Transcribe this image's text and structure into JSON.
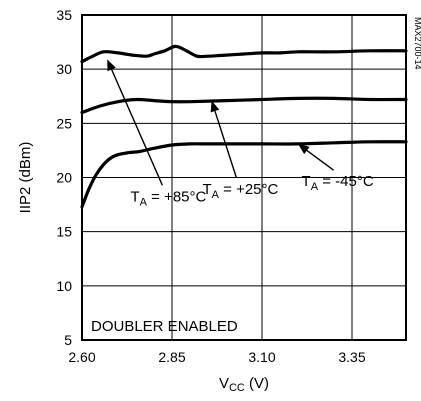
{
  "chart_data": {
    "type": "line",
    "title": "",
    "xlabel": {
      "main": "V",
      "sub": "CC",
      "unit": " (V)"
    },
    "ylabel": "IIP2 (dBm)",
    "xlim": [
      2.6,
      3.5
    ],
    "ylim": [
      5,
      35
    ],
    "x_ticks": [
      "2.60",
      "2.85",
      "3.10",
      "3.35"
    ],
    "x_tick_values": [
      2.6,
      2.85,
      3.1,
      3.35
    ],
    "y_ticks": [
      "5",
      "10",
      "15",
      "20",
      "25",
      "30",
      "35"
    ],
    "y_tick_values": [
      5,
      10,
      15,
      20,
      25,
      30,
      35
    ],
    "grid": true,
    "series": [
      {
        "name": "TA = +85°C",
        "x": [
          2.6,
          2.63,
          2.66,
          2.7,
          2.74,
          2.78,
          2.8,
          2.83,
          2.86,
          2.89,
          2.92,
          2.95,
          3.0,
          3.05,
          3.1,
          3.15,
          3.2,
          3.3,
          3.4,
          3.5
        ],
        "y": [
          30.7,
          31.2,
          31.6,
          31.5,
          31.3,
          31.2,
          31.4,
          31.7,
          32.1,
          31.7,
          31.2,
          31.2,
          31.3,
          31.4,
          31.5,
          31.5,
          31.6,
          31.6,
          31.7,
          31.7
        ]
      },
      {
        "name": "TA = +25°C",
        "x": [
          2.6,
          2.65,
          2.7,
          2.75,
          2.8,
          2.85,
          2.9,
          3.0,
          3.1,
          3.2,
          3.3,
          3.4,
          3.5
        ],
        "y": [
          26.0,
          26.6,
          27.0,
          27.2,
          27.1,
          27.0,
          27.0,
          27.1,
          27.2,
          27.3,
          27.3,
          27.2,
          27.2
        ]
      },
      {
        "name": "TA = -45°C",
        "x": [
          2.6,
          2.62,
          2.64,
          2.66,
          2.68,
          2.7,
          2.73,
          2.76,
          2.8,
          2.85,
          2.9,
          2.95,
          3.0,
          3.1,
          3.2,
          3.3,
          3.4,
          3.5
        ],
        "y": [
          17.3,
          19.0,
          20.3,
          21.2,
          21.8,
          22.1,
          22.3,
          22.4,
          22.7,
          23.0,
          23.1,
          23.1,
          23.1,
          23.1,
          23.1,
          23.2,
          23.3,
          23.3
        ]
      }
    ],
    "annotations": [
      {
        "main": "T",
        "sub": "A",
        "rest": " = +85°C",
        "at": [
          2.84,
          17.8
        ],
        "arrow_to": [
          2.67,
          30.9
        ]
      },
      {
        "main": "T",
        "sub": "A",
        "rest": " = +25°C",
        "at": [
          3.04,
          18.5
        ],
        "arrow_to": [
          2.96,
          27.1
        ]
      },
      {
        "main": "T",
        "sub": "A",
        "rest": " = -45°C",
        "at": [
          3.31,
          19.2
        ],
        "arrow_to": [
          3.2,
          23.1
        ]
      }
    ],
    "inner_label": "DOUBLER ENABLED",
    "side_code": "MAX2700-14"
  }
}
